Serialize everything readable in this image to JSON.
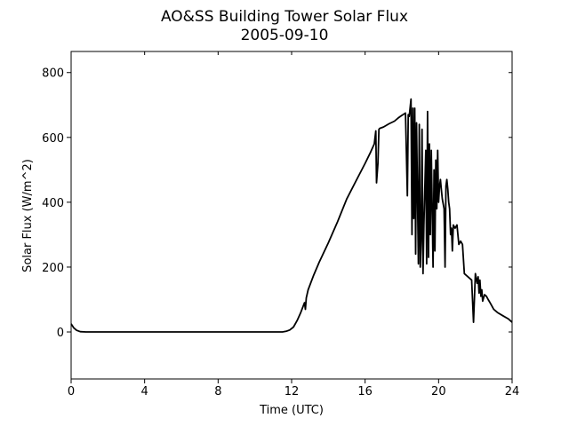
{
  "chart_data": {
    "type": "line",
    "title": "AO&SS Building Tower Solar Flux",
    "subtitle": "2005-09-10",
    "xlabel": "Time (UTC)",
    "ylabel": "Solar Flux (W/m^2)",
    "xlim": [
      0,
      24
    ],
    "ylim": [
      -145,
      865
    ],
    "xticks": [
      0,
      4,
      8,
      12,
      16,
      20,
      24
    ],
    "yticks": [
      0,
      200,
      400,
      600,
      800
    ],
    "grid": false,
    "line_color": "#000000",
    "series": [
      {
        "x": [
          0,
          0.15,
          0.3,
          0.5,
          0.8,
          1,
          2,
          4,
          6,
          8,
          10,
          11,
          11.5,
          11.7,
          11.9,
          12.1,
          12.3,
          12.5,
          12.7,
          12.75,
          12.8,
          12.9,
          13.2,
          13.5,
          14,
          14.5,
          15,
          15.5,
          16,
          16.3,
          16.5,
          16.58,
          16.62,
          16.7,
          16.75,
          16.8,
          17,
          17.3,
          17.6,
          17.8,
          18,
          18.2,
          18.3,
          18.35,
          18.4,
          18.5,
          18.55,
          18.6,
          18.65,
          18.7,
          18.75,
          18.8,
          18.85,
          18.9,
          18.95,
          19,
          19.05,
          19.1,
          19.15,
          19.2,
          19.3,
          19.35,
          19.4,
          19.45,
          19.5,
          19.55,
          19.6,
          19.7,
          19.75,
          19.8,
          19.85,
          19.9,
          19.95,
          20,
          20.05,
          20.1,
          20.15,
          20.2,
          20.3,
          20.35,
          20.4,
          20.45,
          20.5,
          20.55,
          20.6,
          20.65,
          20.7,
          20.75,
          20.8,
          20.9,
          21,
          21.1,
          21.2,
          21.3,
          21.4,
          21.6,
          21.8,
          21.9,
          22,
          22.1,
          22.15,
          22.2,
          22.25,
          22.3,
          22.35,
          22.4,
          22.5,
          22.6,
          22.7,
          22.8,
          22.9,
          23,
          23.2,
          23.5,
          23.8,
          24
        ],
        "y": [
          25,
          12,
          5,
          1,
          0,
          0,
          0,
          0,
          0,
          0,
          0,
          0,
          0,
          2,
          6,
          15,
          35,
          60,
          90,
          70,
          105,
          130,
          175,
          215,
          275,
          340,
          410,
          465,
          520,
          555,
          580,
          620,
          460,
          520,
          625,
          628,
          632,
          642,
          650,
          660,
          668,
          675,
          420,
          670,
          665,
          718,
          300,
          690,
          350,
          690,
          240,
          645,
          420,
          210,
          640,
          200,
          280,
          625,
          180,
          330,
          560,
          210,
          680,
          230,
          580,
          300,
          560,
          200,
          500,
          250,
          530,
          380,
          560,
          400,
          450,
          470,
          440,
          410,
          380,
          200,
          450,
          470,
          440,
          400,
          380,
          300,
          320,
          250,
          330,
          320,
          330,
          270,
          280,
          270,
          180,
          170,
          160,
          30,
          180,
          150,
          170,
          120,
          160,
          110,
          130,
          95,
          115,
          110,
          100,
          90,
          80,
          70,
          60,
          50,
          40,
          30
        ]
      }
    ]
  }
}
